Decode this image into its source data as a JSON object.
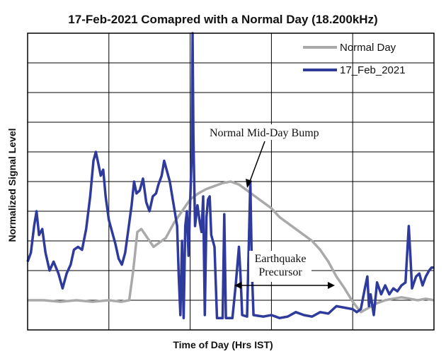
{
  "chart_data": {
    "type": "line",
    "title": "17-Feb-2021 Comapred with a Normal Day (18.200kHz)",
    "xlabel": "Time of Day (Hrs IST)",
    "ylabel": "Normalized Signal Level",
    "xlim": [
      0,
      5
    ],
    "ylim": [
      0,
      10
    ],
    "grid": true,
    "legend_position": "top-right",
    "series": [
      {
        "name": "Normal Day",
        "color": "#a9a9a9",
        "points": [
          [
            0.0,
            1.0
          ],
          [
            0.2,
            1.0
          ],
          [
            0.4,
            0.95
          ],
          [
            0.6,
            1.0
          ],
          [
            0.8,
            0.95
          ],
          [
            1.0,
            1.0
          ],
          [
            1.15,
            0.95
          ],
          [
            1.25,
            1.0
          ],
          [
            1.3,
            2.0
          ],
          [
            1.35,
            3.3
          ],
          [
            1.4,
            3.4
          ],
          [
            1.45,
            3.2
          ],
          [
            1.5,
            3.0
          ],
          [
            1.55,
            2.8
          ],
          [
            1.6,
            2.9
          ],
          [
            1.7,
            3.1
          ],
          [
            1.8,
            3.6
          ],
          [
            1.9,
            4.0
          ],
          [
            2.0,
            4.4
          ],
          [
            2.1,
            4.6
          ],
          [
            2.2,
            4.75
          ],
          [
            2.3,
            4.85
          ],
          [
            2.4,
            4.95
          ],
          [
            2.5,
            5.0
          ],
          [
            2.6,
            4.9
          ],
          [
            2.7,
            4.7
          ],
          [
            2.8,
            4.5
          ],
          [
            2.9,
            4.3
          ],
          [
            3.0,
            4.1
          ],
          [
            3.1,
            3.8
          ],
          [
            3.2,
            3.6
          ],
          [
            3.3,
            3.4
          ],
          [
            3.4,
            3.2
          ],
          [
            3.5,
            3.0
          ],
          [
            3.6,
            2.7
          ],
          [
            3.7,
            2.3
          ],
          [
            3.8,
            1.8
          ],
          [
            3.9,
            1.4
          ],
          [
            4.0,
            0.95
          ],
          [
            4.1,
            0.6
          ],
          [
            4.2,
            0.75
          ],
          [
            4.3,
            0.9
          ],
          [
            4.4,
            1.0
          ],
          [
            4.5,
            1.05
          ],
          [
            4.6,
            1.1
          ],
          [
            4.7,
            1.05
          ],
          [
            4.8,
            1.0
          ],
          [
            4.9,
            1.05
          ],
          [
            5.0,
            1.0
          ]
        ]
      },
      {
        "name": "17_Feb_2021",
        "color": "#2e3a9c",
        "points": [
          [
            0.0,
            2.3
          ],
          [
            0.04,
            2.6
          ],
          [
            0.08,
            3.5
          ],
          [
            0.11,
            4.0
          ],
          [
            0.14,
            3.2
          ],
          [
            0.18,
            3.4
          ],
          [
            0.22,
            2.6
          ],
          [
            0.27,
            2.0
          ],
          [
            0.32,
            2.3
          ],
          [
            0.38,
            1.9
          ],
          [
            0.43,
            1.4
          ],
          [
            0.48,
            1.9
          ],
          [
            0.53,
            2.2
          ],
          [
            0.57,
            2.7
          ],
          [
            0.62,
            2.8
          ],
          [
            0.67,
            2.7
          ],
          [
            0.72,
            3.4
          ],
          [
            0.77,
            4.5
          ],
          [
            0.81,
            5.7
          ],
          [
            0.84,
            6.0
          ],
          [
            0.87,
            5.6
          ],
          [
            0.9,
            5.2
          ],
          [
            0.93,
            5.4
          ],
          [
            0.96,
            4.5
          ],
          [
            1.0,
            3.7
          ],
          [
            1.04,
            3.3
          ],
          [
            1.08,
            2.9
          ],
          [
            1.12,
            2.4
          ],
          [
            1.16,
            2.2
          ],
          [
            1.2,
            2.6
          ],
          [
            1.24,
            3.4
          ],
          [
            1.28,
            4.2
          ],
          [
            1.31,
            5.0
          ],
          [
            1.34,
            4.6
          ],
          [
            1.38,
            4.7
          ],
          [
            1.42,
            5.1
          ],
          [
            1.46,
            4.3
          ],
          [
            1.5,
            4.0
          ],
          [
            1.54,
            4.5
          ],
          [
            1.58,
            4.6
          ],
          [
            1.61,
            4.9
          ],
          [
            1.65,
            5.2
          ],
          [
            1.68,
            5.7
          ],
          [
            1.71,
            5.4
          ],
          [
            1.75,
            5.0
          ],
          [
            1.78,
            4.5
          ],
          [
            1.81,
            4.0
          ],
          [
            1.84,
            3.5
          ],
          [
            1.86,
            1.8
          ],
          [
            1.88,
            0.5
          ],
          [
            1.9,
            3.0
          ],
          [
            1.92,
            0.4
          ],
          [
            1.94,
            3.5
          ],
          [
            1.96,
            4.0
          ],
          [
            1.98,
            2.5
          ],
          [
            2.0,
            4.3
          ],
          [
            2.02,
            6.0
          ],
          [
            2.03,
            10.0
          ],
          [
            2.04,
            6.5
          ],
          [
            2.06,
            3.5
          ],
          [
            2.09,
            4.2
          ],
          [
            2.12,
            3.6
          ],
          [
            2.14,
            3.3
          ],
          [
            2.16,
            4.5
          ],
          [
            2.18,
            0.5
          ],
          [
            2.2,
            3.8
          ],
          [
            2.22,
            4.4
          ],
          [
            2.24,
            4.5
          ],
          [
            2.26,
            3.2
          ],
          [
            2.3,
            2.8
          ],
          [
            2.33,
            0.4
          ],
          [
            2.37,
            0.4
          ],
          [
            2.4,
            0.4
          ],
          [
            2.42,
            3.9
          ],
          [
            2.44,
            0.4
          ],
          [
            2.48,
            0.4
          ],
          [
            2.52,
            0.4
          ],
          [
            2.56,
            1.5
          ],
          [
            2.6,
            2.8
          ],
          [
            2.62,
            1.8
          ],
          [
            2.64,
            0.5
          ],
          [
            2.7,
            0.45
          ],
          [
            2.74,
            5.0
          ],
          [
            2.76,
            2.0
          ],
          [
            2.78,
            0.5
          ],
          [
            2.9,
            0.45
          ],
          [
            3.0,
            0.5
          ],
          [
            3.1,
            0.4
          ],
          [
            3.2,
            0.45
          ],
          [
            3.3,
            0.6
          ],
          [
            3.4,
            0.5
          ],
          [
            3.5,
            0.45
          ],
          [
            3.6,
            0.6
          ],
          [
            3.7,
            0.55
          ],
          [
            3.8,
            0.8
          ],
          [
            3.9,
            0.75
          ],
          [
            4.0,
            0.7
          ],
          [
            4.05,
            0.6
          ],
          [
            4.1,
            0.7
          ],
          [
            4.15,
            1.4
          ],
          [
            4.18,
            1.8
          ],
          [
            4.2,
            0.8
          ],
          [
            4.22,
            1.2
          ],
          [
            4.26,
            0.5
          ],
          [
            4.3,
            1.6
          ],
          [
            4.35,
            1.2
          ],
          [
            4.4,
            1.5
          ],
          [
            4.45,
            1.2
          ],
          [
            4.5,
            1.4
          ],
          [
            4.55,
            1.3
          ],
          [
            4.6,
            1.5
          ],
          [
            4.65,
            1.6
          ],
          [
            4.69,
            3.5
          ],
          [
            4.71,
            2.5
          ],
          [
            4.73,
            1.4
          ],
          [
            4.78,
            1.8
          ],
          [
            4.82,
            1.9
          ],
          [
            4.86,
            1.5
          ],
          [
            4.9,
            1.8
          ],
          [
            4.94,
            2.0
          ],
          [
            4.97,
            2.1
          ],
          [
            5.0,
            2.1
          ]
        ]
      }
    ],
    "annotations": [
      {
        "text": "Normal Mid-Day Bump"
      },
      {
        "text": "Earthquake\nPrecursor"
      }
    ]
  }
}
